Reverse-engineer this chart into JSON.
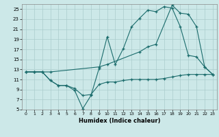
{
  "xlabel": "Humidex (Indice chaleur)",
  "bg_color": "#cce8e8",
  "grid_color": "#aacccc",
  "line_color": "#1a6b6b",
  "xlim": [
    -0.5,
    23.5
  ],
  "ylim": [
    5,
    26
  ],
  "xticks": [
    0,
    1,
    2,
    3,
    4,
    5,
    6,
    7,
    8,
    9,
    10,
    11,
    12,
    13,
    14,
    15,
    16,
    17,
    18,
    19,
    20,
    21,
    22,
    23
  ],
  "yticks": [
    5,
    7,
    9,
    11,
    13,
    15,
    17,
    19,
    21,
    23,
    25
  ],
  "series_min": [
    [
      0,
      12.5
    ],
    [
      1,
      12.5
    ],
    [
      2,
      12.5
    ],
    [
      3,
      10.8
    ],
    [
      4,
      9.8
    ],
    [
      5,
      9.8
    ],
    [
      6,
      9.2
    ],
    [
      7,
      7.8
    ],
    [
      8,
      8.0
    ],
    [
      9,
      10.0
    ],
    [
      10,
      10.5
    ],
    [
      11,
      10.5
    ],
    [
      12,
      10.8
    ],
    [
      13,
      11.0
    ],
    [
      14,
      11.0
    ],
    [
      15,
      11.0
    ],
    [
      16,
      11.0
    ],
    [
      17,
      11.2
    ],
    [
      18,
      11.5
    ],
    [
      19,
      11.8
    ],
    [
      20,
      12.0
    ],
    [
      21,
      12.0
    ],
    [
      22,
      12.0
    ],
    [
      23,
      12.0
    ]
  ],
  "series_wave": [
    [
      0,
      12.5
    ],
    [
      1,
      12.5
    ],
    [
      2,
      12.5
    ],
    [
      3,
      10.8
    ],
    [
      4,
      9.8
    ],
    [
      5,
      9.8
    ],
    [
      6,
      8.8
    ],
    [
      7,
      5.2
    ],
    [
      8,
      7.8
    ],
    [
      9,
      13.2
    ],
    [
      10,
      19.5
    ],
    [
      11,
      14.0
    ],
    [
      12,
      17.2
    ],
    [
      13,
      21.5
    ],
    [
      14,
      23.2
    ],
    [
      15,
      24.8
    ],
    [
      16,
      24.5
    ],
    [
      17,
      25.5
    ],
    [
      18,
      25.2
    ],
    [
      19,
      21.5
    ],
    [
      20,
      15.8
    ],
    [
      21,
      15.5
    ],
    [
      22,
      13.5
    ],
    [
      23,
      12.0
    ]
  ],
  "series_upper": [
    [
      0,
      12.5
    ],
    [
      1,
      12.5
    ],
    [
      2,
      12.5
    ],
    [
      3,
      12.5
    ],
    [
      9,
      13.5
    ],
    [
      10,
      14.0
    ],
    [
      14,
      16.5
    ],
    [
      15,
      17.5
    ],
    [
      16,
      18.0
    ],
    [
      18,
      25.8
    ],
    [
      19,
      24.2
    ],
    [
      20,
      24.0
    ],
    [
      21,
      21.5
    ],
    [
      22,
      13.5
    ],
    [
      23,
      12.0
    ]
  ]
}
